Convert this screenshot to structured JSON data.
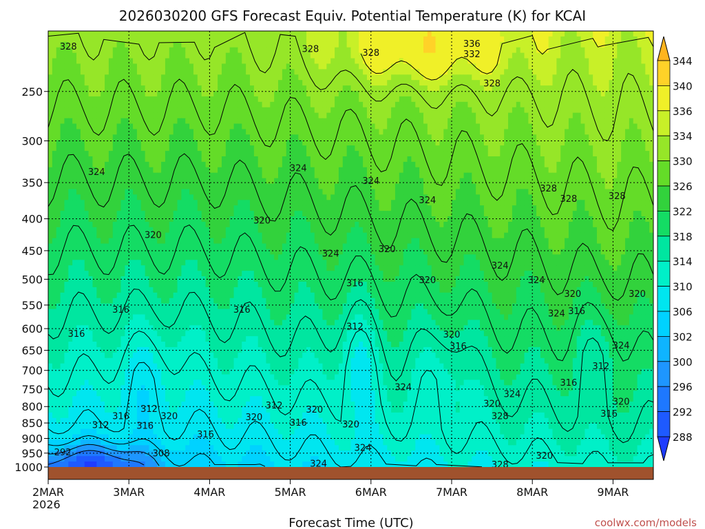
{
  "chart_data": {
    "type": "heatmap",
    "title": "2026030200 GFS Forecast Equiv. Potential Temperature (K) for KCAI",
    "xlabel": "Forecast Time (UTC)",
    "ylabel": "",
    "x_ticks": [
      "2MAR",
      "3MAR",
      "4MAR",
      "5MAR",
      "6MAR",
      "7MAR",
      "8MAR",
      "9MAR"
    ],
    "x_year_label": "2026",
    "y_ticks": [
      250,
      300,
      350,
      400,
      450,
      500,
      550,
      600,
      650,
      700,
      750,
      800,
      850,
      900,
      950,
      1000
    ],
    "y_range": [
      200,
      1000
    ],
    "y_scale": "log-pressure",
    "x_range_days": [
      0,
      7.5
    ],
    "grid": true,
    "colorbar": {
      "levels": [
        288,
        292,
        296,
        300,
        302,
        306,
        310,
        314,
        318,
        322,
        326,
        330,
        334,
        336,
        340,
        344
      ],
      "colors": [
        "#1e3cff",
        "#1e5aff",
        "#1e78ff",
        "#1e96ff",
        "#0fb4ff",
        "#00d2ff",
        "#00e6f0",
        "#00f0c8",
        "#00e6a0",
        "#14dc64",
        "#32d23c",
        "#64dc28",
        "#96e628",
        "#c8f028",
        "#f0f028",
        "#ffd228",
        "#ffb41e"
      ],
      "placement": "right"
    },
    "contour_labels": [
      {
        "t": "328",
        "d": 0.25,
        "p": 212
      },
      {
        "t": "328",
        "d": 3.25,
        "p": 214
      },
      {
        "t": "328",
        "d": 4.0,
        "p": 217
      },
      {
        "t": "336",
        "d": 5.25,
        "p": 210
      },
      {
        "t": "332",
        "d": 5.25,
        "p": 218
      },
      {
        "t": "328",
        "d": 5.5,
        "p": 243
      },
      {
        "t": "324",
        "d": 0.6,
        "p": 337
      },
      {
        "t": "324",
        "d": 3.1,
        "p": 332
      },
      {
        "t": "324",
        "d": 4.0,
        "p": 348
      },
      {
        "t": "324",
        "d": 4.7,
        "p": 374
      },
      {
        "t": "328",
        "d": 6.2,
        "p": 358
      },
      {
        "t": "328",
        "d": 6.45,
        "p": 372
      },
      {
        "t": "328",
        "d": 7.05,
        "p": 368
      },
      {
        "t": "320",
        "d": 1.3,
        "p": 425
      },
      {
        "t": "320",
        "d": 2.65,
        "p": 403
      },
      {
        "t": "324",
        "d": 3.5,
        "p": 455
      },
      {
        "t": "320",
        "d": 4.2,
        "p": 448
      },
      {
        "t": "324",
        "d": 5.6,
        "p": 476
      },
      {
        "t": "320",
        "d": 4.7,
        "p": 502
      },
      {
        "t": "316",
        "d": 3.8,
        "p": 508
      },
      {
        "t": "324",
        "d": 6.05,
        "p": 502
      },
      {
        "t": "320",
        "d": 6.5,
        "p": 528
      },
      {
        "t": "320",
        "d": 7.3,
        "p": 528
      },
      {
        "t": "316",
        "d": 0.9,
        "p": 560
      },
      {
        "t": "316",
        "d": 2.4,
        "p": 560
      },
      {
        "t": "324",
        "d": 6.3,
        "p": 568
      },
      {
        "t": "316",
        "d": 6.55,
        "p": 563
      },
      {
        "t": "316",
        "d": 0.35,
        "p": 612
      },
      {
        "t": "312",
        "d": 3.8,
        "p": 596
      },
      {
        "t": "320",
        "d": 5.0,
        "p": 614
      },
      {
        "t": "316",
        "d": 5.08,
        "p": 641
      },
      {
        "t": "324",
        "d": 7.1,
        "p": 639
      },
      {
        "t": "312",
        "d": 6.85,
        "p": 690
      },
      {
        "t": "324",
        "d": 4.4,
        "p": 746
      },
      {
        "t": "316",
        "d": 6.45,
        "p": 733
      },
      {
        "t": "324",
        "d": 5.75,
        "p": 765
      },
      {
        "t": "312",
        "d": 1.25,
        "p": 808
      },
      {
        "t": "312",
        "d": 2.8,
        "p": 797
      },
      {
        "t": "320",
        "d": 5.5,
        "p": 792
      },
      {
        "t": "320",
        "d": 7.1,
        "p": 786
      },
      {
        "t": "320",
        "d": 3.3,
        "p": 810
      },
      {
        "t": "316",
        "d": 0.9,
        "p": 830
      },
      {
        "t": "320",
        "d": 1.5,
        "p": 830
      },
      {
        "t": "320",
        "d": 2.55,
        "p": 833
      },
      {
        "t": "316",
        "d": 3.1,
        "p": 850
      },
      {
        "t": "320",
        "d": 3.75,
        "p": 855
      },
      {
        "t": "328",
        "d": 5.6,
        "p": 830
      },
      {
        "t": "316",
        "d": 6.95,
        "p": 822
      },
      {
        "t": "312",
        "d": 0.65,
        "p": 857
      },
      {
        "t": "316",
        "d": 1.2,
        "p": 860
      },
      {
        "t": "316",
        "d": 1.95,
        "p": 887
      },
      {
        "t": "324",
        "d": 3.9,
        "p": 932
      },
      {
        "t": "292",
        "d": 0.18,
        "p": 948
      },
      {
        "t": "308",
        "d": 1.4,
        "p": 952
      },
      {
        "t": "320",
        "d": 6.15,
        "p": 960
      },
      {
        "t": "324",
        "d": 3.35,
        "p": 988
      },
      {
        "t": "328",
        "d": 5.6,
        "p": 992
      }
    ]
  },
  "credit": "coolwx.com/models"
}
